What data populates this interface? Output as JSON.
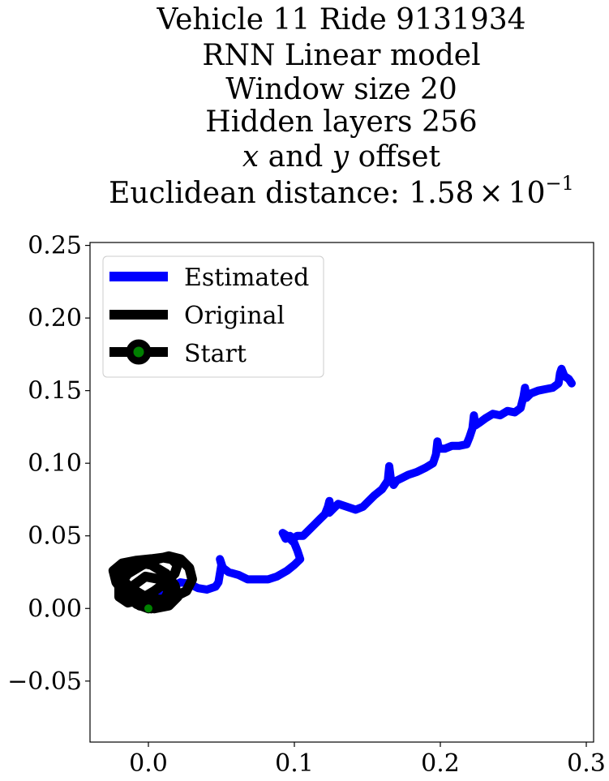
{
  "chart_data": {
    "type": "line",
    "title_lines": [
      "Vehicle 11 Ride 9131934",
      "RNN Linear model",
      "Window size 20",
      "Hidden layers 256"
    ],
    "title_offset": {
      "x": "x",
      "and": " and ",
      "y": "y",
      "rest": " offset"
    },
    "title_distance": {
      "prefix": "Euclidean distance: ",
      "mantissa": "1.58",
      "times": "×",
      "base": "10",
      "exponent": "−1"
    },
    "xlim": [
      -0.04,
      0.305
    ],
    "ylim": [
      -0.092,
      0.252
    ],
    "x_ticks": [
      0.0,
      0.1,
      0.2,
      0.3
    ],
    "x_tick_labels": [
      "0.0",
      "0.1",
      "0.2",
      "0.3"
    ],
    "y_ticks": [
      -0.05,
      0.0,
      0.05,
      0.1,
      0.15,
      0.2,
      0.25
    ],
    "y_tick_labels": [
      "−0.05",
      "0.00",
      "0.05",
      "0.10",
      "0.15",
      "0.20",
      "0.25"
    ],
    "grid": false,
    "legend_placement": "upper-left",
    "series": [
      {
        "name": "Estimated",
        "color": "#0000ff",
        "x": [
          0.0,
          0.008,
          0.016,
          0.022,
          0.028,
          0.034,
          0.04,
          0.046,
          0.048,
          0.05,
          0.049,
          0.051,
          0.055,
          0.062,
          0.068,
          0.075,
          0.082,
          0.088,
          0.095,
          0.1,
          0.104,
          0.102,
          0.1,
          0.095,
          0.092,
          0.094,
          0.097,
          0.099,
          0.102,
          0.106,
          0.11,
          0.114,
          0.118,
          0.121,
          0.123,
          0.124,
          0.125,
          0.124,
          0.126,
          0.13,
          0.136,
          0.142,
          0.147,
          0.151,
          0.155,
          0.16,
          0.164,
          0.165,
          0.166,
          0.168,
          0.17,
          0.174,
          0.178,
          0.184,
          0.19,
          0.195,
          0.197,
          0.198,
          0.199,
          0.203,
          0.208,
          0.213,
          0.218,
          0.22,
          0.222,
          0.223,
          0.224,
          0.227,
          0.231,
          0.236,
          0.241,
          0.246,
          0.251,
          0.255,
          0.257,
          0.258,
          0.259,
          0.262,
          0.267,
          0.272,
          0.277,
          0.281,
          0.282,
          0.283,
          0.285,
          0.288,
          0.29
        ],
        "y": [
          0.0,
          0.008,
          0.015,
          0.018,
          0.017,
          0.014,
          0.013,
          0.015,
          0.018,
          0.03,
          0.034,
          0.028,
          0.025,
          0.023,
          0.02,
          0.02,
          0.02,
          0.022,
          0.026,
          0.03,
          0.034,
          0.04,
          0.045,
          0.05,
          0.052,
          0.048,
          0.05,
          0.048,
          0.05,
          0.05,
          0.054,
          0.058,
          0.062,
          0.065,
          0.07,
          0.074,
          0.068,
          0.066,
          0.068,
          0.072,
          0.07,
          0.068,
          0.07,
          0.074,
          0.078,
          0.082,
          0.088,
          0.098,
          0.09,
          0.085,
          0.088,
          0.09,
          0.092,
          0.094,
          0.097,
          0.1,
          0.106,
          0.115,
          0.11,
          0.11,
          0.112,
          0.112,
          0.113,
          0.118,
          0.124,
          0.133,
          0.126,
          0.128,
          0.131,
          0.134,
          0.133,
          0.136,
          0.135,
          0.138,
          0.146,
          0.152,
          0.145,
          0.148,
          0.15,
          0.151,
          0.152,
          0.155,
          0.162,
          0.165,
          0.16,
          0.158,
          0.155
        ]
      },
      {
        "name": "Original",
        "color": "#000000",
        "x": [
          0.0,
          -0.008,
          -0.016,
          -0.022,
          -0.024,
          -0.018,
          -0.008,
          0.002,
          0.01,
          0.016,
          0.02,
          0.018,
          0.012,
          0.004,
          -0.006,
          -0.014,
          -0.02,
          -0.02,
          -0.014,
          -0.004,
          0.006,
          0.014,
          0.022,
          0.028,
          0.03,
          0.026,
          0.018,
          0.008,
          -0.002,
          -0.012,
          -0.018,
          -0.016,
          -0.008,
          0.002,
          0.012,
          0.018,
          0.02,
          0.014,
          0.004,
          -0.006,
          -0.012,
          -0.01,
          -0.002,
          0.008,
          0.014,
          0.01,
          0.002,
          -0.004,
          0.0
        ],
        "y": [
          0.0,
          0.003,
          0.01,
          0.018,
          0.026,
          0.031,
          0.033,
          0.034,
          0.035,
          0.034,
          0.03,
          0.024,
          0.018,
          0.012,
          0.006,
          0.004,
          0.008,
          0.016,
          0.024,
          0.03,
          0.034,
          0.036,
          0.034,
          0.028,
          0.02,
          0.012,
          0.008,
          0.006,
          0.008,
          0.014,
          0.02,
          0.028,
          0.032,
          0.03,
          0.024,
          0.016,
          0.008,
          0.002,
          0.0,
          0.002,
          0.008,
          0.016,
          0.022,
          0.02,
          0.012,
          0.004,
          0.0,
          0.002,
          0.0
        ]
      }
    ],
    "start": {
      "name": "Start",
      "x": 0.0,
      "y": 0.0,
      "color": "#008000",
      "edge_color": "#000000"
    }
  }
}
